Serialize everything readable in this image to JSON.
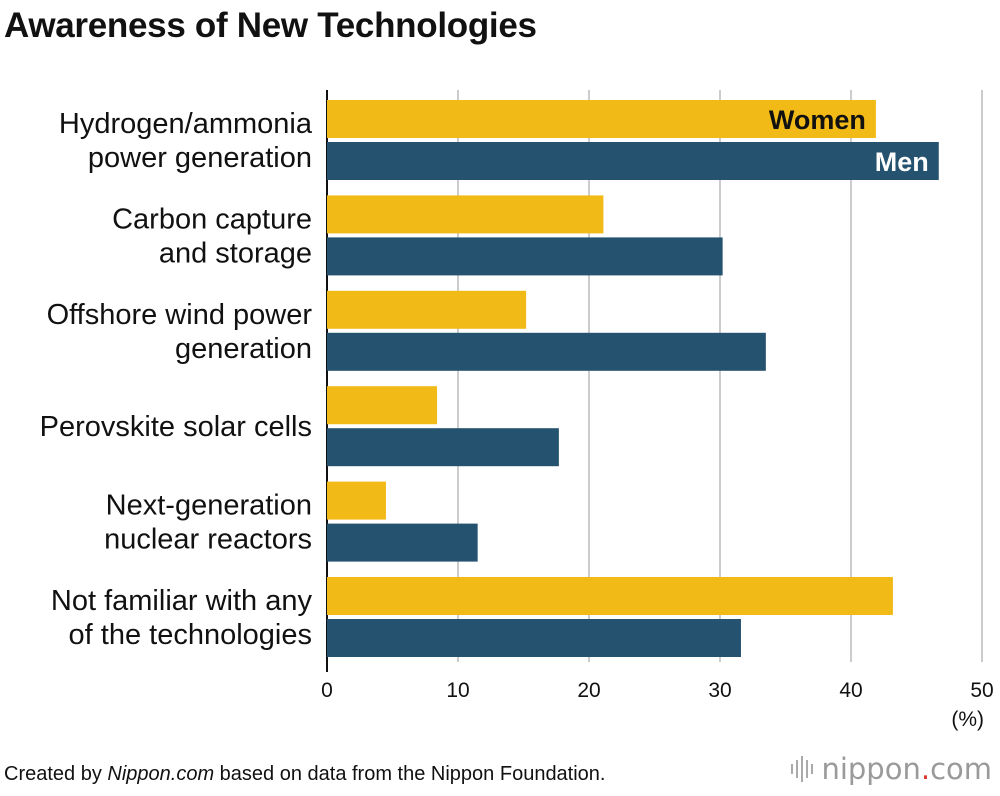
{
  "chart_data": {
    "type": "bar",
    "orientation": "horizontal",
    "title": "Awareness of New Technologies",
    "categories": [
      [
        "Hydrogen/ammonia",
        "power generation"
      ],
      [
        "Carbon capture",
        "and storage"
      ],
      [
        "Offshore wind power",
        "generation"
      ],
      [
        "Perovskite solar cells"
      ],
      [
        "Next-generation",
        "nuclear reactors"
      ],
      [
        "Not familiar with any",
        "of the technologies"
      ]
    ],
    "series": [
      {
        "name": "Women",
        "color": "#f2ba17",
        "label_color": "#111111",
        "values": [
          41.9,
          21.1,
          15.2,
          8.4,
          4.5,
          43.2
        ]
      },
      {
        "name": "Men",
        "color": "#24526f",
        "label_color": "#ffffff",
        "values": [
          46.7,
          30.2,
          33.5,
          17.7,
          11.5,
          31.6
        ]
      }
    ],
    "xlim": [
      0,
      50
    ],
    "xticks": [
      0,
      10,
      20,
      30,
      40,
      50
    ],
    "xunit": "(%)",
    "grid": true,
    "gridColor": "#cccccc",
    "legend": "inline-bar-labels"
  },
  "footer": {
    "credit_prefix": "Created by ",
    "credit_site": "Nippon.com",
    "credit_suffix": " based on data from the Nippon Foundation.",
    "logo_main": "nippon",
    "logo_dot": ".",
    "logo_end": "com"
  }
}
